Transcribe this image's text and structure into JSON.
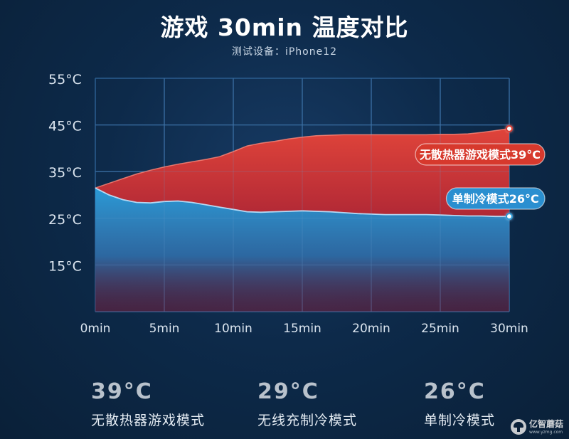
{
  "title": "游戏 30min 温度对比",
  "subtitle": "测试设备：iPhone12",
  "chart_data": {
    "type": "area",
    "x_ticks": [
      "0min",
      "5min",
      "10min",
      "15min",
      "20min",
      "25min",
      "30min"
    ],
    "y_ticks": [
      "15°C",
      "25°C",
      "35°C",
      "45°C",
      "55°C"
    ],
    "x": [
      0,
      1,
      2,
      3,
      4,
      5,
      6,
      7,
      8,
      9,
      10,
      11,
      12,
      13,
      14,
      15,
      16,
      17,
      18,
      19,
      20,
      21,
      22,
      23,
      24,
      25,
      26,
      27,
      28,
      29,
      30
    ],
    "xlim": [
      0,
      30
    ],
    "ylim": [
      5,
      55
    ],
    "grid": true,
    "series": [
      {
        "name": "无散热器游戏模式39°C",
        "color": "#d93a30",
        "values": [
          31.5,
          32.5,
          33.5,
          34.5,
          35.3,
          36.0,
          36.6,
          37.1,
          37.6,
          38.2,
          39.3,
          40.5,
          41.1,
          41.5,
          42.0,
          42.4,
          42.7,
          42.8,
          42.9,
          42.9,
          42.9,
          42.9,
          42.9,
          42.9,
          42.9,
          43.0,
          43.0,
          43.1,
          43.4,
          43.8,
          44.2
        ]
      },
      {
        "name": "单制冷模式26°C",
        "color": "#2a9ad6",
        "values": [
          31.5,
          30.0,
          29.0,
          28.4,
          28.3,
          28.6,
          28.7,
          28.4,
          27.9,
          27.4,
          26.9,
          26.4,
          26.3,
          26.4,
          26.5,
          26.6,
          26.5,
          26.4,
          26.2,
          26.0,
          25.9,
          25.8,
          25.8,
          25.8,
          25.8,
          25.7,
          25.6,
          25.5,
          25.5,
          25.4,
          25.4
        ]
      }
    ]
  },
  "stats": [
    {
      "value": "39°C",
      "label": "无散热器游戏模式"
    },
    {
      "value": "29°C",
      "label": "无线充制冷模式"
    },
    {
      "value": "26°C",
      "label": "单制冷模式"
    }
  ],
  "watermark": {
    "name": "亿智蘑菇",
    "url": "www.yzmg.com"
  }
}
